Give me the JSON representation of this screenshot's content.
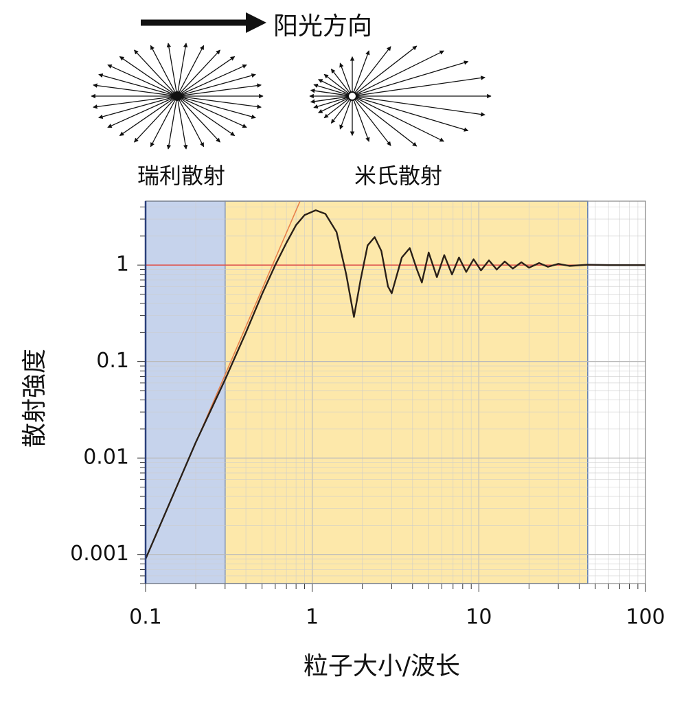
{
  "chart_data": {
    "type": "line",
    "annotations": {
      "direction": "阳光方向",
      "rayleigh": "瑞利散射",
      "mie": "米氏散射"
    },
    "xlabel": "粒子大小/波长",
    "ylabel": "散射強度",
    "log_x": true,
    "log_y": true,
    "grid": true,
    "xlim": [
      0.1,
      100
    ],
    "ylim": [
      0.0005,
      4.6
    ],
    "xticks": [
      0.1,
      1,
      10,
      100
    ],
    "yticks": [
      0.001,
      0.01,
      0.1,
      1
    ],
    "regions": [
      {
        "x": [
          0.1,
          0.3
        ],
        "color": "#c6d3ec"
      },
      {
        "x": [
          0.3,
          45
        ],
        "color": "#fde8aa"
      }
    ],
    "series": [
      {
        "color": "#e8804a",
        "x": [
          0.1,
          0.85
        ],
        "values": [
          0.0009,
          4.7
        ]
      },
      {
        "color": "#e0504a",
        "x": [
          0.1,
          100
        ],
        "values": [
          1,
          1
        ]
      },
      {
        "color": "#2a2018",
        "x": [
          0.1,
          0.2,
          0.3,
          0.4,
          0.5,
          0.6,
          0.7,
          0.8,
          0.9,
          1.05,
          1.2,
          1.4,
          1.6,
          1.78,
          1.95,
          2.15,
          2.37,
          2.6,
          2.85,
          3.0,
          3.45,
          3.85,
          4.25,
          4.55,
          5.0,
          5.6,
          6.2,
          6.9,
          7.6,
          8.4,
          9.3,
          10.3,
          11.5,
          12.8,
          14.3,
          16,
          18,
          20,
          23,
          26,
          30,
          35,
          45,
          60,
          100
        ],
        "values": [
          0.0009,
          0.0145,
          0.065,
          0.2,
          0.5,
          1.0,
          1.7,
          2.6,
          3.3,
          3.7,
          3.4,
          2.2,
          0.8,
          0.29,
          0.7,
          1.6,
          1.95,
          1.4,
          0.6,
          0.51,
          1.2,
          1.5,
          0.9,
          0.66,
          1.35,
          0.75,
          1.27,
          0.8,
          1.2,
          0.85,
          1.15,
          0.88,
          1.12,
          0.9,
          1.09,
          0.92,
          1.07,
          0.94,
          1.05,
          0.96,
          1.03,
          0.98,
          1.01,
          1.0,
          1.0
        ]
      }
    ]
  }
}
